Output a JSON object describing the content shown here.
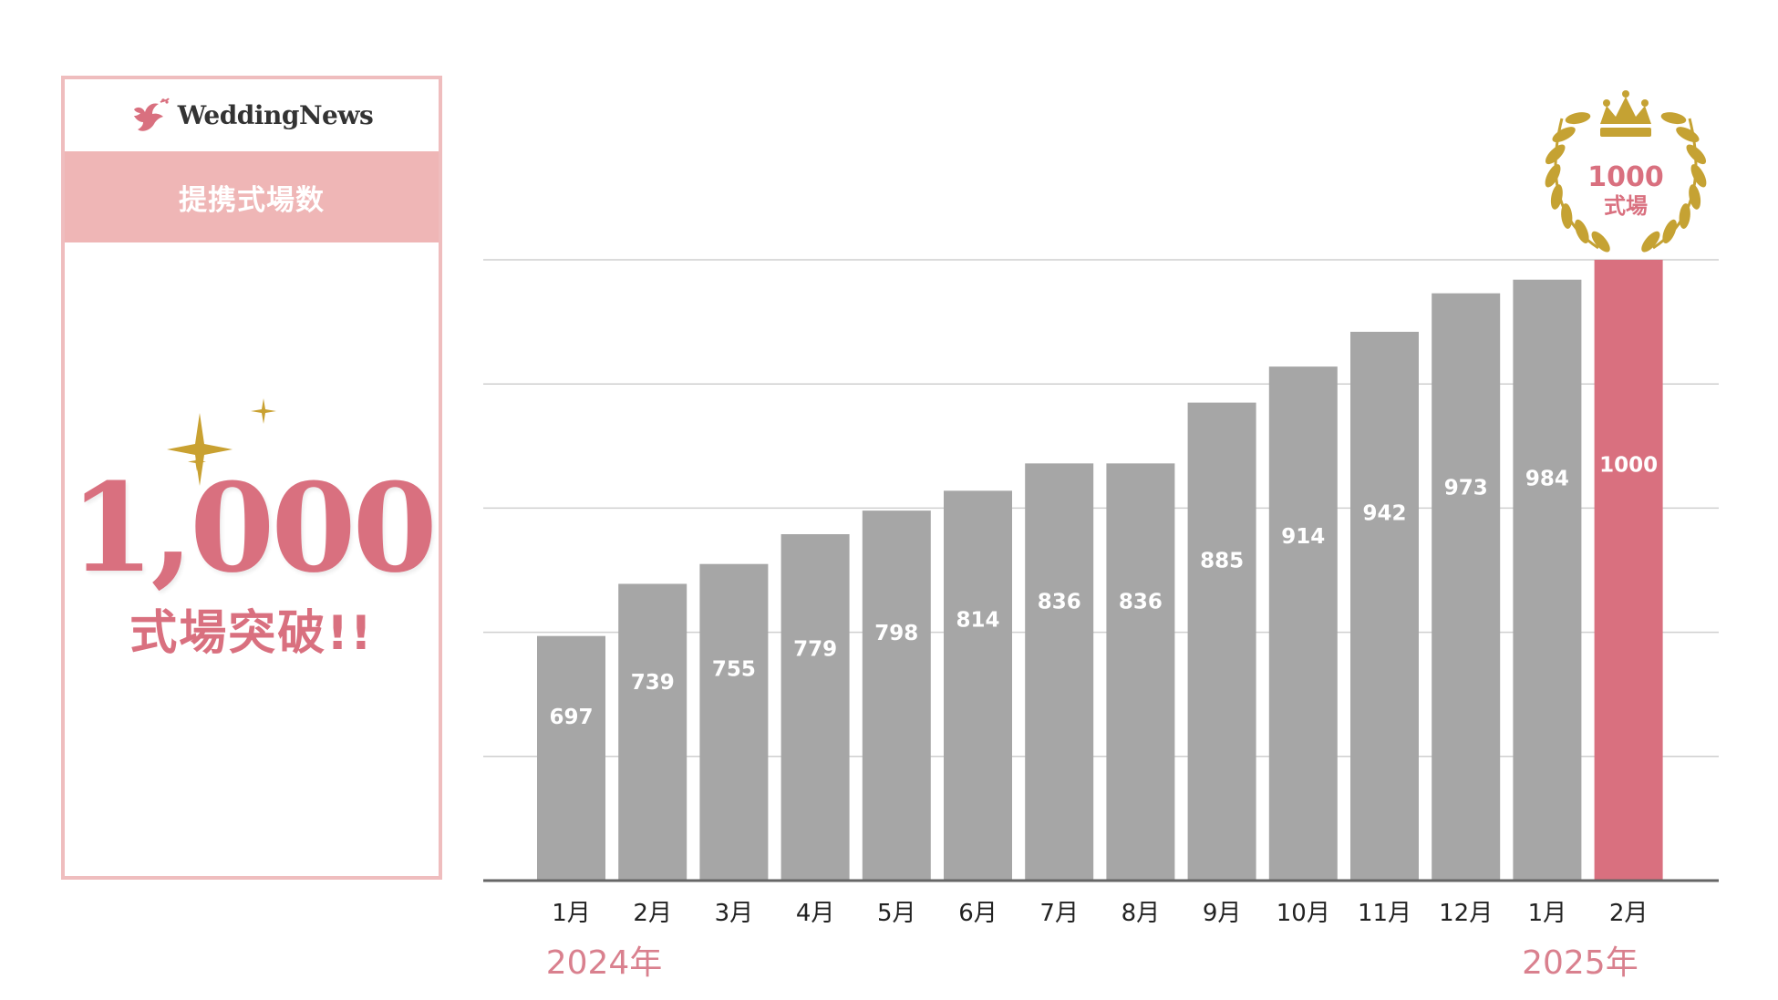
{
  "brand": {
    "logo_text": "WeddingNews"
  },
  "card": {
    "band_label": "提携式場数",
    "headline_number": "1,000",
    "headline_sub": "式場突破!!"
  },
  "badge": {
    "number": "1000",
    "label": "式場"
  },
  "colors": {
    "highlight": "#D9707F",
    "bar": "#A6A6A6",
    "band": "#EFB6B6",
    "card_border": "#EFBDBE",
    "gold": "#C5A233",
    "year_text": "#D9808E"
  },
  "chart_data": {
    "type": "bar",
    "categories": [
      "1月",
      "2月",
      "3月",
      "4月",
      "5月",
      "6月",
      "7月",
      "8月",
      "9月",
      "10月",
      "11月",
      "12月",
      "1月",
      "2月"
    ],
    "values": [
      697,
      739,
      755,
      779,
      798,
      814,
      836,
      836,
      885,
      914,
      942,
      973,
      984,
      1000
    ],
    "year_labels": [
      "2024年",
      "2025年"
    ],
    "highlight_index": 13,
    "grid": true
  }
}
